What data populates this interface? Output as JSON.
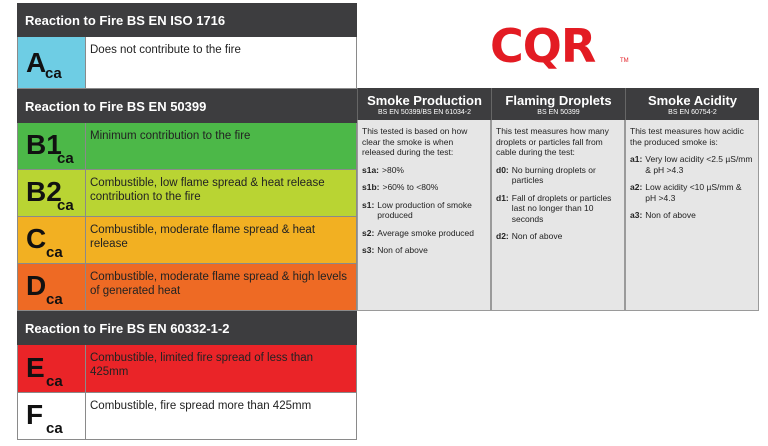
{
  "logo": {
    "text": "CQR",
    "tm": "TM"
  },
  "section_iso1716": {
    "title": "Reaction to Fire BS EN ISO 1716",
    "rows": [
      {
        "letter": "A",
        "sub": "ca",
        "desc": "Does not contribute to the fire",
        "color": "#6ecde4"
      }
    ]
  },
  "section_50399": {
    "title": "Reaction to Fire BS EN 50399",
    "rows": [
      {
        "letter": "B1",
        "sub": "ca",
        "desc": "Minimum contribution to the fire",
        "color": "#4cb848"
      },
      {
        "letter": "B2",
        "sub": "ca",
        "desc": "Combustible, low flame spread & heat release contribution to the fire",
        "color": "#b9d433"
      },
      {
        "letter": "C",
        "sub": "ca",
        "desc": "Combustible, moderate flame spread & heat release",
        "color": "#f2b022"
      },
      {
        "letter": "D",
        "sub": "ca",
        "desc": "Combustible, moderate flame spread & high levels of generated heat",
        "color": "#ee6a24"
      }
    ]
  },
  "section_60332": {
    "title": "Reaction to Fire BS EN 60332-1-2",
    "rows": [
      {
        "letter": "E",
        "sub": "ca",
        "desc": "Combustible, limited fire spread of less than 425mm",
        "color": "#ea2428"
      },
      {
        "letter": "F",
        "sub": "ca",
        "desc": "Combustible, fire spread more than 425mm",
        "color": "#ffffff"
      }
    ]
  },
  "columns": [
    {
      "title": "Smoke Production",
      "standard": "BS EN 50399/BS EN 61034-2",
      "intro": "This tested is based on how clear the smoke is when released during the test:",
      "items": [
        {
          "code": "s1a:",
          "text": ">80%"
        },
        {
          "code": "s1b:",
          "text": ">60% to <80%"
        },
        {
          "code": "s1:",
          "text": "Low production of smoke produced"
        },
        {
          "code": "s2:",
          "text": "Average smoke produced"
        },
        {
          "code": "s3:",
          "text": "Non of above"
        }
      ]
    },
    {
      "title": "Flaming Droplets",
      "standard": "BS EN 50399",
      "intro": "This test measures how many droplets or particles fall from cable during the test:",
      "items": [
        {
          "code": "d0:",
          "text": "No burning droplets or particles"
        },
        {
          "code": "d1:",
          "text": "Fall of droplets or particles last no longer than 10 seconds"
        },
        {
          "code": "d2:",
          "text": "Non of above"
        }
      ]
    },
    {
      "title": "Smoke Acidity",
      "standard": "BS EN 60754-2",
      "intro": "This test measures how acidic the produced smoke is:",
      "items": [
        {
          "code": "a1:",
          "text": "Very low acidity <2.5 µS/mm & pH >4.3"
        },
        {
          "code": "a2:",
          "text": "Low acidity <10 µS/mm & pH >4.3"
        },
        {
          "code": "a3:",
          "text": "Non of above"
        }
      ]
    }
  ]
}
